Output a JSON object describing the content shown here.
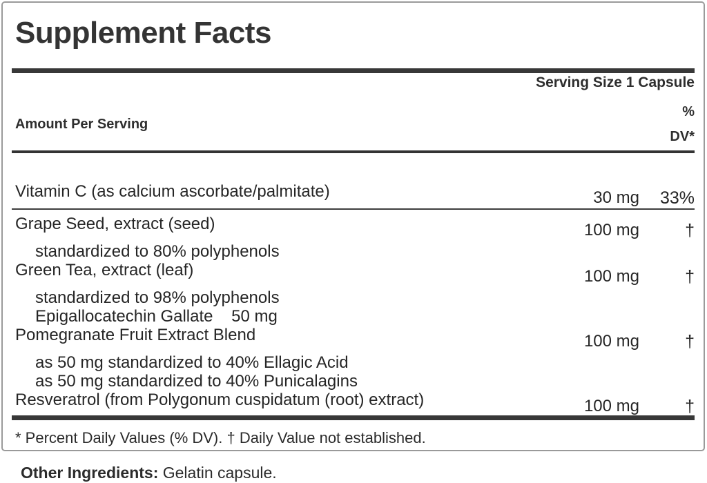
{
  "title": "Supplement Facts",
  "serving_size": "Serving Size 1 Capsule",
  "header": {
    "amount_label": "Amount Per Serving",
    "dv_line1": "%",
    "dv_line2": "DV*"
  },
  "rows": [
    {
      "name": "Vitamin C (as calcium ascorbate/palmitate)",
      "amount": "30 mg",
      "dv": "33%",
      "subs": [],
      "divider_after": true
    },
    {
      "name": "Grape Seed, extract (seed)",
      "amount": "100 mg",
      "dv": "†",
      "subs": [
        "standardized to 80% polyphenols"
      ],
      "divider_after": false
    },
    {
      "name": "Green Tea, extract (leaf)",
      "amount": "100 mg",
      "dv": "†",
      "subs": [
        "standardized to 98% polyphenols",
        "Epigallocatechin Gallate    50 mg"
      ],
      "divider_after": false
    },
    {
      "name": "Pomegranate Fruit Extract Blend",
      "amount": "100 mg",
      "dv": "†",
      "subs": [
        "as 50 mg standardized to 40% Ellagic Acid",
        "as 50 mg standardized to 40% Punicalagins"
      ],
      "divider_after": false
    },
    {
      "name": "Resveratrol (from Polygonum cuspidatum (root) extract)",
      "amount": "100 mg",
      "dv": "†",
      "subs": [],
      "divider_after": false
    }
  ],
  "footnote": "* Percent Daily Values (% DV). † Daily Value not established.",
  "other_ingredients": {
    "label": "Other Ingredients:",
    "value": " Gelatin capsule."
  },
  "colors": {
    "text": "#262626",
    "bar": "#383838",
    "border": "#9a9a9a",
    "background": "#ffffff"
  }
}
